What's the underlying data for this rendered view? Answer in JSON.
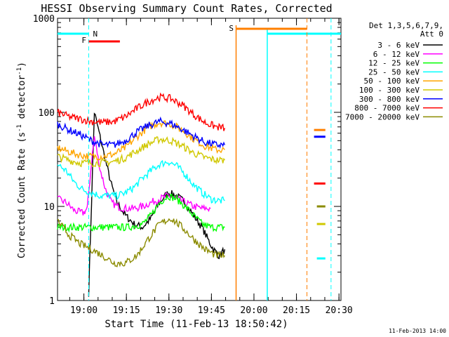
{
  "chart_data": {
    "type": "line",
    "title": "HESSI Observing Summary Count Rates, Corrected",
    "xlabel": "Start Time (11-Feb-13 18:50:42)",
    "ylabel_main": "Corrected Count Rate (s",
    "ylabel_sup1": "-1",
    "ylabel_mid": " detector",
    "ylabel_sup2": "-1",
    "ylabel_end": ")",
    "yscale": "log",
    "ylim": [
      1,
      1000
    ],
    "xlim_minutes": [
      0,
      100
    ],
    "x_ticks": [
      {
        "label": "19:00",
        "value": 9.3
      },
      {
        "label": "19:15",
        "value": 24.3
      },
      {
        "label": "19:30",
        "value": 39.3
      },
      {
        "label": "19:45",
        "value": 54.3
      },
      {
        "label": "20:00",
        "value": 69.3
      },
      {
        "label": "20:15",
        "value": 84.3
      },
      {
        "label": "20:30",
        "value": 99.3
      }
    ],
    "y_ticks": [
      {
        "label": "1",
        "value": 1
      },
      {
        "label": "10",
        "value": 10
      },
      {
        "label": "100",
        "value": 100
      },
      {
        "label": "1000",
        "value": 1000
      }
    ],
    "legend_position": "right",
    "legend_header": [
      "Det 1,3,5,6,7,9,",
      "Att 0"
    ],
    "series": [
      {
        "name": "3 - 6 keV",
        "color": "#000000",
        "x": [
          11,
          13,
          15,
          17,
          19,
          21,
          24,
          27,
          30,
          33,
          36,
          39,
          42,
          45,
          48,
          51,
          53,
          55,
          57,
          59
        ],
        "values": [
          1.2,
          100,
          55,
          30,
          17,
          11,
          8,
          6.5,
          6,
          7.5,
          11,
          14,
          13,
          11,
          8,
          6,
          4.5,
          3.5,
          3,
          3.5
        ]
      },
      {
        "name": "6 - 12 keV",
        "color": "#ff00ff",
        "x": [
          0,
          3,
          6,
          9,
          10.5,
          12,
          13,
          15,
          17,
          19,
          21,
          24,
          27,
          30,
          33,
          36,
          39,
          42,
          45,
          48,
          51,
          54
        ],
        "values": [
          12,
          11,
          9,
          8.5,
          9.5,
          30,
          55,
          25,
          15,
          11,
          10,
          9.5,
          9.5,
          10,
          11,
          12,
          13,
          12,
          11,
          10,
          9.5,
          9.5
        ]
      },
      {
        "name": "12 - 25 keV",
        "color": "#00ff00",
        "x": [
          0,
          5,
          10,
          15,
          20,
          25,
          30,
          33,
          36,
          39,
          42,
          45,
          48,
          51,
          54,
          57,
          59
        ],
        "values": [
          6,
          6,
          6,
          6,
          6,
          6,
          6.5,
          8,
          11,
          13,
          12,
          10,
          8,
          6.5,
          6,
          6,
          6
        ]
      },
      {
        "name": "25 - 50 keV",
        "color": "#00ffff",
        "x": [
          0,
          3,
          6,
          9,
          12,
          15,
          18,
          21,
          24,
          27,
          30,
          33,
          36,
          39,
          42,
          45,
          48,
          51,
          54,
          57,
          59
        ],
        "values": [
          28,
          24,
          18,
          15,
          14,
          13,
          13,
          13,
          14,
          16,
          20,
          24,
          28,
          30,
          27,
          22,
          17,
          14,
          12,
          11.5,
          11.5
        ]
      },
      {
        "name": "50 - 100 keV",
        "color": "#ffa500",
        "x": [
          0,
          4,
          8,
          12,
          16,
          20,
          24,
          28,
          32,
          36,
          40,
          44,
          48,
          52,
          56,
          59
        ],
        "values": [
          42,
          38,
          35,
          34,
          34,
          36,
          42,
          55,
          70,
          78,
          75,
          65,
          52,
          44,
          40,
          40
        ]
      },
      {
        "name": "100 - 300 keV",
        "color": "#d0c800",
        "x": [
          0,
          4,
          8,
          12,
          16,
          20,
          24,
          28,
          32,
          36,
          40,
          44,
          48,
          52,
          56,
          59
        ],
        "values": [
          34,
          31,
          29,
          29,
          29,
          30,
          33,
          39,
          46,
          52,
          50,
          44,
          37,
          33,
          31,
          31
        ]
      },
      {
        "name": "300 - 800 keV",
        "color": "#0000ff",
        "x": [
          0,
          4,
          8,
          12,
          16,
          20,
          24,
          28,
          32,
          36,
          40,
          44,
          48,
          52,
          56,
          59
        ],
        "values": [
          75,
          65,
          58,
          50,
          45,
          45,
          50,
          62,
          72,
          80,
          76,
          66,
          56,
          48,
          45,
          45
        ]
      },
      {
        "name": "800 - 7000 keV",
        "color": "#ff0000",
        "x": [
          0,
          4,
          8,
          12,
          16,
          20,
          24,
          28,
          32,
          36,
          40,
          44,
          48,
          52,
          56,
          59
        ],
        "values": [
          100,
          90,
          85,
          80,
          78,
          80,
          90,
          110,
          130,
          145,
          140,
          120,
          95,
          78,
          70,
          68
        ]
      },
      {
        "name": "7000 - 20000 keV",
        "color": "#8b8b00",
        "x": [
          0,
          4,
          8,
          12,
          16,
          20,
          24,
          28,
          32,
          36,
          40,
          44,
          48,
          52,
          56,
          59
        ],
        "values": [
          7,
          5,
          4,
          3.5,
          3,
          2.5,
          2.5,
          3,
          4.5,
          6.5,
          7.5,
          6,
          4.5,
          3.5,
          3,
          3
        ]
      }
    ],
    "annotations": [
      {
        "label": "N",
        "color": "#00ffff"
      },
      {
        "label": "F",
        "color": "#ff0000"
      },
      {
        "label": "S",
        "color": "#ff7f00"
      }
    ],
    "timestamp": "11-Feb-2013 14:00"
  }
}
